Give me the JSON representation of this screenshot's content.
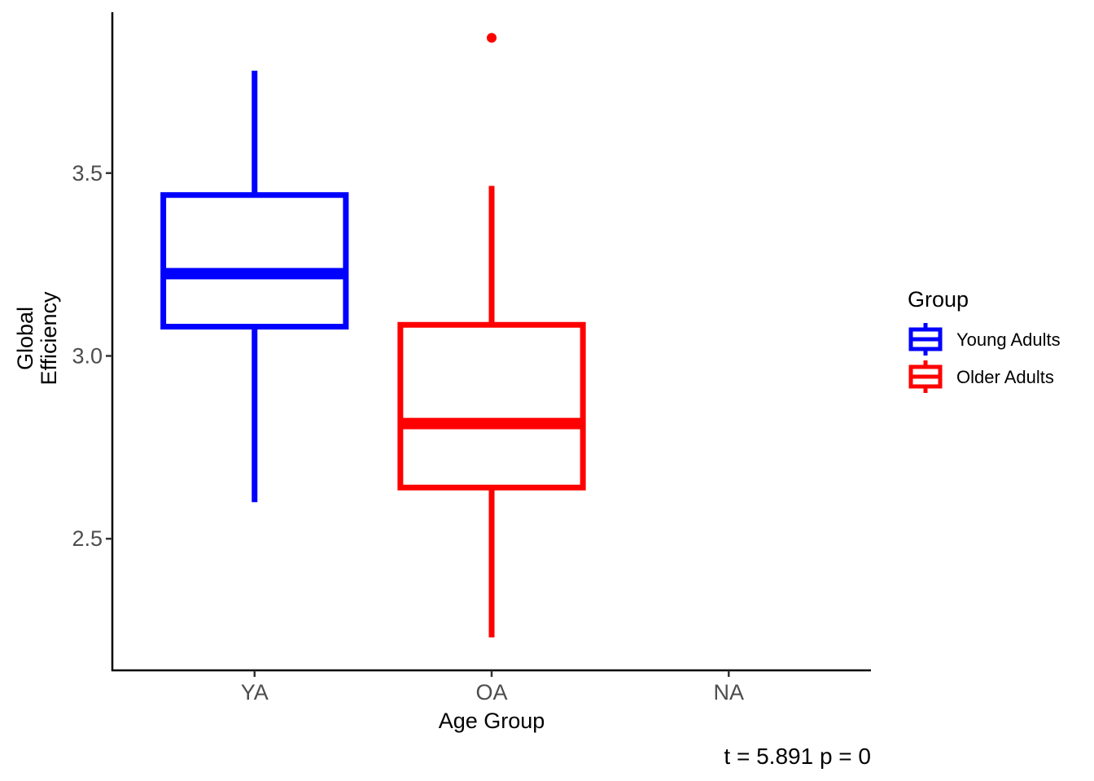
{
  "chart_data": {
    "type": "boxplot",
    "xlabel": "Age Group",
    "ylabel_lines": [
      "Global",
      "Efficiency"
    ],
    "categories": [
      "YA",
      "OA",
      "NA"
    ],
    "ylim": [
      2.14,
      3.94
    ],
    "yticks": [
      2.5,
      3.0,
      3.5
    ],
    "ytick_labels": [
      "2.5",
      "3.0",
      "3.5"
    ],
    "grid": false,
    "legend": {
      "title": "Group",
      "position": "right",
      "entries": [
        {
          "label": "Young Adults",
          "color": "#0000ff"
        },
        {
          "label": "Older Adults",
          "color": "#ff0000"
        }
      ]
    },
    "series": [
      {
        "name": "Young Adults",
        "category": "YA",
        "color": "#0000ff",
        "whisker_low": 2.6,
        "q1": 3.08,
        "median": 3.225,
        "q3": 3.44,
        "whisker_high": 3.78,
        "outliers": []
      },
      {
        "name": "Older Adults",
        "category": "OA",
        "color": "#ff0000",
        "whisker_low": 2.23,
        "q1": 2.64,
        "median": 2.815,
        "q3": 3.085,
        "whisker_high": 3.465,
        "outliers": [
          3.87
        ]
      }
    ],
    "caption": "t =  5.891 p =  0"
  }
}
